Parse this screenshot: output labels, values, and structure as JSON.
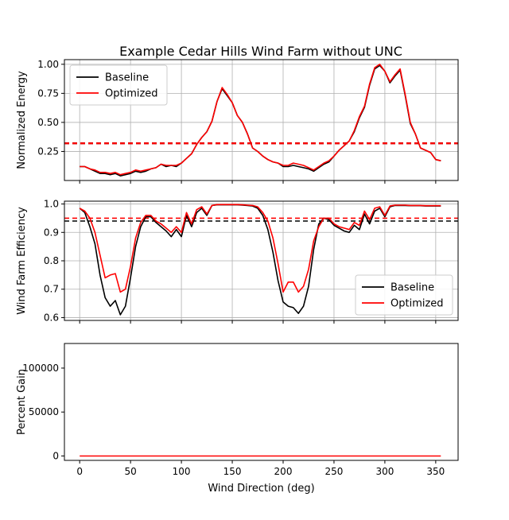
{
  "chart_data": [
    {
      "type": "line",
      "title": "Example Cedar Hills Wind Farm without UNC",
      "xlabel": "",
      "ylabel": "Normalized Energy",
      "xlim": [
        -15,
        372
      ],
      "ylim": [
        0.0,
        1.04
      ],
      "yticks": [
        0.25,
        0.5,
        0.75,
        1.0
      ],
      "ytick_labels": [
        "0.25",
        "0.50",
        "0.75",
        "1.00"
      ],
      "xticks": [
        0,
        50,
        100,
        150,
        200,
        250,
        300,
        350
      ],
      "show_xtick_labels": false,
      "grid": true,
      "legend": {
        "placement": "top-left",
        "entries": [
          "Baseline",
          "Optimized"
        ]
      },
      "colors": {
        "Baseline": "#000000",
        "Optimized": "#ff0000"
      },
      "x": [
        0,
        5,
        10,
        15,
        20,
        25,
        30,
        35,
        40,
        45,
        50,
        55,
        60,
        65,
        70,
        75,
        80,
        85,
        90,
        95,
        100,
        105,
        110,
        115,
        120,
        125,
        130,
        135,
        140,
        145,
        150,
        155,
        160,
        165,
        170,
        175,
        180,
        185,
        190,
        195,
        200,
        205,
        210,
        215,
        220,
        225,
        230,
        235,
        240,
        245,
        250,
        255,
        260,
        265,
        270,
        275,
        280,
        285,
        290,
        295,
        300,
        305,
        310,
        315,
        320,
        325,
        330,
        335,
        340,
        345,
        350,
        355
      ],
      "series": [
        {
          "name": "Baseline",
          "values": [
            0.12,
            0.12,
            0.1,
            0.08,
            0.06,
            0.06,
            0.05,
            0.06,
            0.04,
            0.05,
            0.06,
            0.08,
            0.07,
            0.08,
            0.1,
            0.11,
            0.14,
            0.12,
            0.13,
            0.12,
            0.15,
            0.19,
            0.23,
            0.31,
            0.37,
            0.42,
            0.51,
            0.68,
            0.79,
            0.73,
            0.67,
            0.56,
            0.5,
            0.4,
            0.28,
            0.25,
            0.21,
            0.18,
            0.16,
            0.15,
            0.12,
            0.12,
            0.13,
            0.12,
            0.11,
            0.1,
            0.08,
            0.11,
            0.14,
            0.16,
            0.21,
            0.26,
            0.3,
            0.34,
            0.42,
            0.54,
            0.63,
            0.82,
            0.96,
            0.99,
            0.94,
            0.84,
            0.9,
            0.95,
            0.73,
            0.49,
            0.4,
            0.28,
            0.26,
            0.24,
            0.18,
            0.17
          ],
          "reference": 0.32
        },
        {
          "name": "Optimized",
          "values": [
            0.12,
            0.12,
            0.1,
            0.09,
            0.07,
            0.07,
            0.06,
            0.07,
            0.05,
            0.06,
            0.07,
            0.09,
            0.08,
            0.09,
            0.1,
            0.11,
            0.14,
            0.13,
            0.13,
            0.13,
            0.15,
            0.19,
            0.23,
            0.31,
            0.37,
            0.42,
            0.51,
            0.68,
            0.8,
            0.74,
            0.67,
            0.56,
            0.5,
            0.4,
            0.28,
            0.25,
            0.21,
            0.18,
            0.16,
            0.15,
            0.13,
            0.13,
            0.15,
            0.14,
            0.13,
            0.11,
            0.09,
            0.12,
            0.15,
            0.17,
            0.21,
            0.26,
            0.3,
            0.34,
            0.43,
            0.55,
            0.64,
            0.83,
            0.97,
            1.0,
            0.94,
            0.85,
            0.91,
            0.96,
            0.74,
            0.5,
            0.4,
            0.28,
            0.26,
            0.24,
            0.18,
            0.17
          ],
          "reference": 0.32
        }
      ]
    },
    {
      "type": "line",
      "title": "",
      "xlabel": "",
      "ylabel": "Wind Farm Efficiency",
      "xlim": [
        -15,
        372
      ],
      "ylim": [
        0.59,
        1.01
      ],
      "yticks": [
        0.6,
        0.7,
        0.8,
        0.9,
        1.0
      ],
      "ytick_labels": [
        "0.6",
        "0.7",
        "0.8",
        "0.9",
        "1.0"
      ],
      "xticks": [
        0,
        50,
        100,
        150,
        200,
        250,
        300,
        350
      ],
      "show_xtick_labels": false,
      "grid": true,
      "legend": {
        "placement": "bottom-right",
        "entries": [
          "Baseline",
          "Optimized"
        ]
      },
      "colors": {
        "Baseline": "#000000",
        "Optimized": "#ff0000"
      },
      "x": [
        0,
        5,
        10,
        15,
        20,
        25,
        30,
        35,
        40,
        45,
        50,
        55,
        60,
        65,
        70,
        75,
        80,
        85,
        90,
        95,
        100,
        105,
        110,
        115,
        120,
        125,
        130,
        135,
        140,
        145,
        150,
        155,
        160,
        165,
        170,
        175,
        180,
        185,
        190,
        195,
        200,
        205,
        210,
        215,
        220,
        225,
        230,
        235,
        240,
        245,
        250,
        255,
        260,
        265,
        270,
        275,
        280,
        285,
        290,
        295,
        300,
        305,
        310,
        315,
        320,
        325,
        330,
        335,
        340,
        345,
        350,
        355
      ],
      "series": [
        {
          "name": "Baseline",
          "values": [
            0.985,
            0.97,
            0.92,
            0.86,
            0.75,
            0.67,
            0.64,
            0.66,
            0.61,
            0.64,
            0.74,
            0.85,
            0.92,
            0.955,
            0.955,
            0.935,
            0.92,
            0.905,
            0.885,
            0.91,
            0.885,
            0.96,
            0.92,
            0.97,
            0.985,
            0.96,
            0.995,
            0.997,
            0.997,
            0.997,
            0.997,
            0.997,
            0.996,
            0.995,
            0.993,
            0.985,
            0.96,
            0.91,
            0.83,
            0.73,
            0.655,
            0.64,
            0.635,
            0.615,
            0.64,
            0.71,
            0.84,
            0.93,
            0.95,
            0.945,
            0.925,
            0.915,
            0.905,
            0.9,
            0.925,
            0.91,
            0.965,
            0.93,
            0.975,
            0.985,
            0.955,
            0.99,
            0.995,
            0.995,
            0.995,
            0.994,
            0.994,
            0.994,
            0.993,
            0.993,
            0.993,
            0.993
          ],
          "reference": 0.94
        },
        {
          "name": "Optimized",
          "values": [
            0.985,
            0.975,
            0.95,
            0.9,
            0.82,
            0.74,
            0.75,
            0.755,
            0.69,
            0.7,
            0.78,
            0.88,
            0.935,
            0.96,
            0.96,
            0.94,
            0.93,
            0.915,
            0.9,
            0.92,
            0.9,
            0.97,
            0.93,
            0.98,
            0.99,
            0.965,
            0.995,
            0.998,
            0.998,
            0.998,
            0.998,
            0.998,
            0.997,
            0.996,
            0.995,
            0.99,
            0.97,
            0.94,
            0.88,
            0.79,
            0.69,
            0.725,
            0.725,
            0.69,
            0.71,
            0.77,
            0.87,
            0.92,
            0.95,
            0.95,
            0.93,
            0.92,
            0.915,
            0.91,
            0.935,
            0.925,
            0.975,
            0.945,
            0.985,
            0.99,
            0.96,
            0.993,
            0.996,
            0.996,
            0.996,
            0.995,
            0.995,
            0.995,
            0.994,
            0.994,
            0.994,
            0.994
          ],
          "reference": 0.95
        }
      ]
    },
    {
      "type": "line",
      "title": "",
      "xlabel": "Wind Direction (deg)",
      "ylabel": "Percent Gain",
      "xlim": [
        -15,
        372
      ],
      "ylim": [
        -5000,
        128000
      ],
      "yticks": [
        0,
        50000,
        100000
      ],
      "ytick_labels": [
        "0",
        "50000",
        "100000"
      ],
      "xticks": [
        0,
        50,
        100,
        150,
        200,
        250,
        300,
        350
      ],
      "xtick_labels": [
        "0",
        "50",
        "100",
        "150",
        "200",
        "250",
        "300",
        "350"
      ],
      "show_xtick_labels": true,
      "grid": false,
      "colors": {
        "Percent Gain": "#ff0000"
      },
      "series": [
        {
          "x": [
            0,
            355
          ],
          "values": [
            0,
            0
          ]
        }
      ]
    }
  ]
}
